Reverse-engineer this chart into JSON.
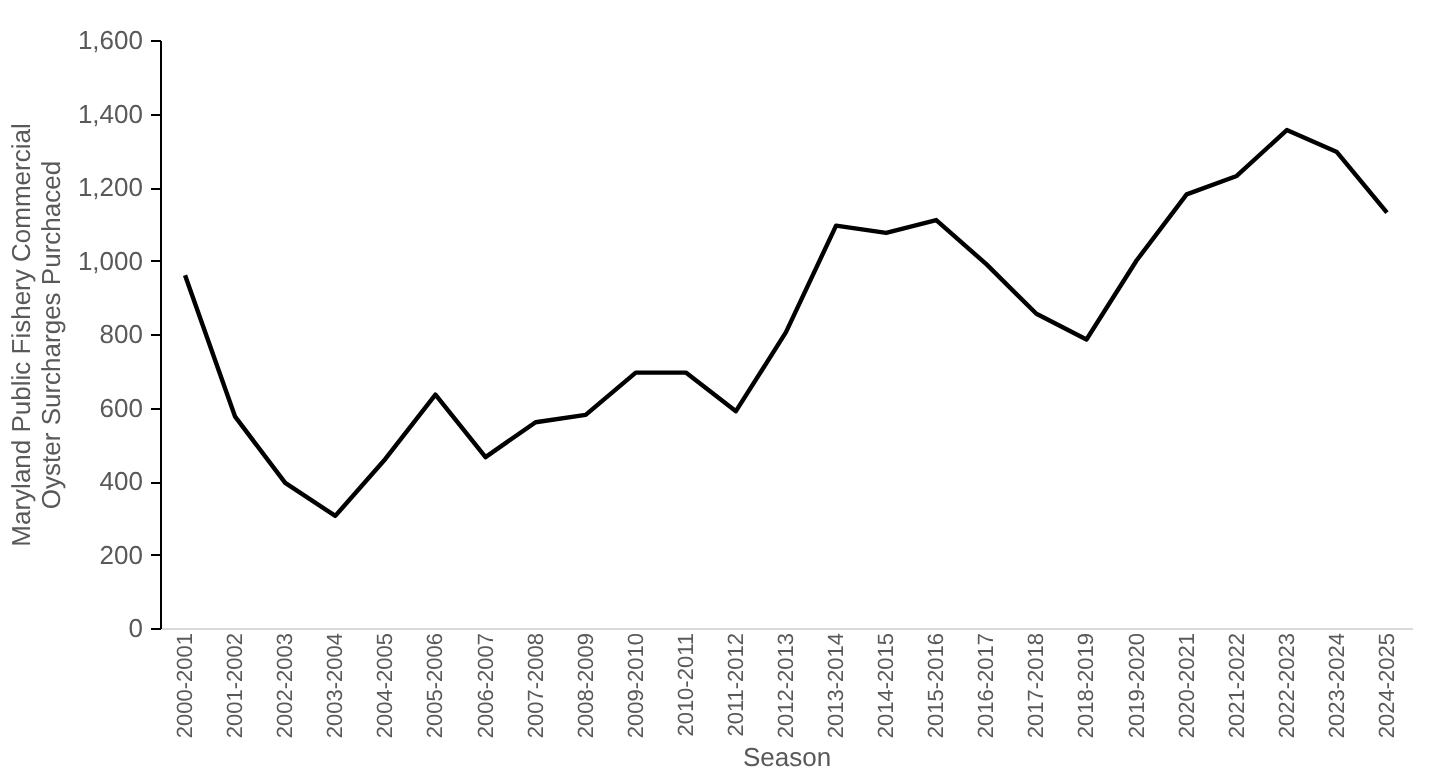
{
  "chart_data": {
    "type": "line",
    "xlabel": "Season",
    "ylabel": "Maryland Public Fishery Commercial Oyster Surcharges Purchaced",
    "categories": [
      "2000-2001",
      "2001-2002",
      "2002-2003",
      "2003-2004",
      "2004-2005",
      "2005-2006",
      "2006-2007",
      "2007-2008",
      "2008-2009",
      "2009-2010",
      "2010-2011",
      "2011-2012",
      "2012-2013",
      "2013-2014",
      "2014-2015",
      "2015-2016",
      "2016-2017",
      "2017-2018",
      "2018-2019",
      "2019-2020",
      "2020-2021",
      "2021-2022",
      "2022-2023",
      "2023-2024",
      "2024-2025"
    ],
    "series": [
      {
        "color": "#000000",
        "values": [
          960,
          575,
          395,
          305,
          460,
          635,
          465,
          560,
          580,
          695,
          695,
          590,
          805,
          1095,
          1075,
          1110,
          990,
          855,
          785,
          1000,
          1180,
          1230,
          1355,
          1295,
          1130
        ]
      }
    ],
    "ylim": [
      0,
      1600
    ],
    "yticks": [
      0,
      {
        "value": 200,
        "label": "200"
      },
      {
        "value": 400,
        "label": "400"
      },
      {
        "value": 600,
        "label": "600"
      },
      {
        "value": 800,
        "label": "800"
      },
      {
        "value": 1000,
        "label": "1,000"
      },
      {
        "value": 1200,
        "label": "1,200"
      },
      {
        "value": 1400,
        "label": "1,400"
      },
      {
        "value": 1600,
        "label": "1,600"
      }
    ],
    "grid": false,
    "legend": false,
    "marker": "none",
    "line_style": "solid"
  }
}
